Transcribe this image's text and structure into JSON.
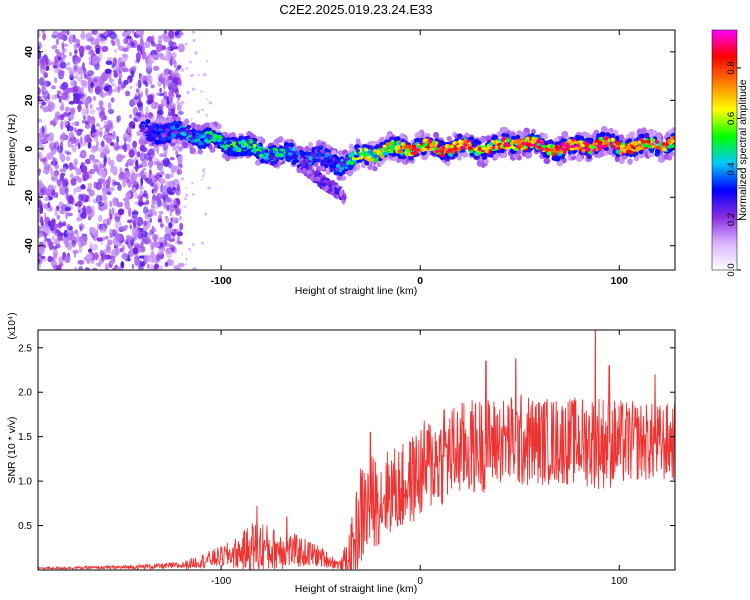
{
  "figure": {
    "title": "C2E2.2025.019.23.24.E33"
  },
  "chart_data": [
    {
      "type": "heatmap",
      "xlabel": "Height of straight line (km)",
      "ylabel": "Frequency (Hz)",
      "xlim": [
        -192,
        128
      ],
      "ylim": [
        -50,
        49
      ],
      "xticks": [
        -100,
        0,
        100
      ],
      "yticks": [
        -40,
        -20,
        0,
        20,
        40
      ],
      "x_tick_labels": [
        "-100",
        "0",
        "100"
      ],
      "y_tick_labels": [
        "-40",
        "-20",
        "0",
        "20",
        "40"
      ],
      "colorbar": {
        "label": "Normalized spectral amplitude",
        "range": [
          0.0,
          0.95
        ],
        "ticks": [
          0.0,
          0.2,
          0.4,
          0.6,
          0.8
        ],
        "tick_labels": [
          "0.0",
          "0.2",
          "0.4",
          "0.6",
          "0.8"
        ],
        "colors": [
          "#ffffff",
          "#d8b4ff",
          "#8a2be2",
          "#0000ff",
          "#00c8ff",
          "#00ff00",
          "#ffff00",
          "#ff8000",
          "#ff0000",
          "#ff00ff"
        ]
      },
      "noise_region_x": [
        -192,
        -120
      ],
      "ridge": {
        "x": [
          -140,
          -130,
          -120,
          -110,
          -100,
          -90,
          -80,
          -70,
          -60,
          -50,
          -45,
          -40,
          -35,
          -30,
          -20,
          -10,
          0,
          10,
          20,
          30,
          40,
          50,
          60,
          70,
          80,
          90,
          100,
          110,
          120,
          128
        ],
        "frequency": [
          7,
          7,
          6,
          5,
          3,
          1,
          -1,
          -2,
          -3,
          -4,
          -5,
          -6,
          -5,
          -3,
          -1,
          0,
          1,
          0,
          1,
          0,
          1,
          3,
          1,
          0,
          1,
          2,
          1,
          1,
          2,
          2
        ],
        "amplitude": [
          0.3,
          0.35,
          0.4,
          0.45,
          0.5,
          0.55,
          0.5,
          0.45,
          0.4,
          0.35,
          0.35,
          0.4,
          0.5,
          0.6,
          0.7,
          0.75,
          0.8,
          0.85,
          0.85,
          0.8,
          0.85,
          0.9,
          0.85,
          0.85,
          0.9,
          0.9,
          0.85,
          0.8,
          0.8,
          0.75
        ]
      },
      "branch": {
        "x": [
          -60,
          -55,
          -50,
          -45,
          -40,
          -38
        ],
        "frequency": [
          -6,
          -10,
          -13,
          -16,
          -18,
          -20
        ]
      }
    },
    {
      "type": "line",
      "xlabel": "Height of straight line (km)",
      "ylabel": "SNR (10 * v/v)",
      "y_scale_label": "(x10⁴)",
      "xlim": [
        -192,
        128
      ],
      "ylim": [
        0,
        2.7
      ],
      "xticks": [
        -100,
        0,
        100
      ],
      "yticks": [
        0.5,
        1.0,
        1.5,
        2.0,
        2.5
      ],
      "x_tick_labels": [
        "-100",
        "0",
        "100"
      ],
      "y_tick_labels": [
        "0.5",
        "1.0",
        "1.5",
        "2.0",
        "2.5"
      ],
      "series": [
        {
          "color": "#ee3333",
          "x": [
            -192,
            -150,
            -120,
            -110,
            -100,
            -90,
            -85,
            -80,
            -75,
            -70,
            -65,
            -60,
            -55,
            -50,
            -45,
            -40,
            -35,
            -30,
            -25,
            -20,
            -15,
            -10,
            -5,
            0,
            5,
            10,
            20,
            30,
            40,
            50,
            60,
            70,
            80,
            90,
            100,
            110,
            120,
            128
          ],
          "mean": [
            0.02,
            0.03,
            0.05,
            0.1,
            0.15,
            0.2,
            0.25,
            0.25,
            0.22,
            0.25,
            0.22,
            0.2,
            0.18,
            0.15,
            0.1,
            0.05,
            0.15,
            0.6,
            0.75,
            0.8,
            0.9,
            0.9,
            1.0,
            1.1,
            1.2,
            1.25,
            1.35,
            1.4,
            1.45,
            1.45,
            1.45,
            1.45,
            1.45,
            1.45,
            1.42,
            1.45,
            1.42,
            1.45
          ],
          "spread": [
            0.01,
            0.02,
            0.04,
            0.08,
            0.12,
            0.2,
            0.3,
            0.35,
            0.25,
            0.25,
            0.2,
            0.18,
            0.15,
            0.12,
            0.08,
            0.05,
            0.35,
            0.6,
            0.55,
            0.5,
            0.5,
            0.5,
            0.5,
            0.55,
            0.55,
            0.55,
            0.55,
            0.55,
            0.5,
            0.55,
            0.5,
            0.5,
            0.5,
            0.55,
            0.5,
            0.45,
            0.45,
            0.45
          ],
          "peaks": [
            {
              "x": -82,
              "y": 0.72
            },
            {
              "x": -67,
              "y": 0.6
            },
            {
              "x": -25,
              "y": 1.55
            },
            {
              "x": 12,
              "y": 1.8
            },
            {
              "x": 33,
              "y": 2.35
            },
            {
              "x": 48,
              "y": 2.38
            },
            {
              "x": 88,
              "y": 2.7
            },
            {
              "x": 95,
              "y": 2.3
            },
            {
              "x": 118,
              "y": 2.2
            }
          ]
        }
      ]
    }
  ]
}
